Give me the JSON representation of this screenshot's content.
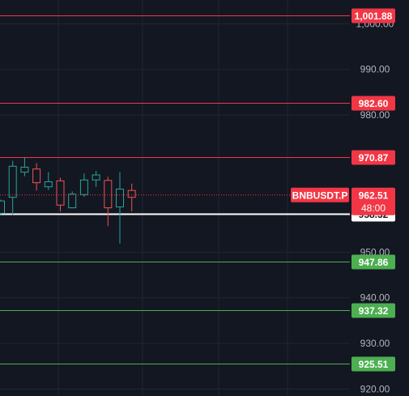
{
  "chart_data": {
    "type": "candlestick",
    "symbol": "BNBUSDT.P",
    "ylim": [
      918.5,
      1005.2
    ],
    "y_ticks": [
      "1,000.00",
      "990.00",
      "980.00",
      "950.00",
      "940.00",
      "930.00",
      "920.00"
    ],
    "y_tick_values": [
      1000,
      990,
      980,
      950,
      940,
      930,
      920
    ],
    "last_price": {
      "value": 962.51,
      "label": "962.51",
      "countdown": "48:00"
    },
    "horizontal_levels": [
      {
        "value": 1001.88,
        "label": "1,001.88",
        "kind": "resistance"
      },
      {
        "value": 982.6,
        "label": "982.60",
        "kind": "resistance"
      },
      {
        "value": 970.87,
        "label": "970.87",
        "kind": "resistance"
      },
      {
        "value": 958.32,
        "label": "958.32",
        "kind": "pivot"
      },
      {
        "value": 947.86,
        "label": "947.86",
        "kind": "support"
      },
      {
        "value": 937.32,
        "label": "937.32",
        "kind": "support"
      },
      {
        "value": 925.51,
        "label": "925.51",
        "kind": "support"
      }
    ],
    "candles": [
      {
        "o": 958.5,
        "h": 961.5,
        "l": 958.0,
        "c": 961.2
      },
      {
        "o": 962.0,
        "h": 970.0,
        "l": 958.2,
        "c": 968.8
      },
      {
        "o": 967.5,
        "h": 970.8,
        "l": 966.6,
        "c": 968.6
      },
      {
        "o": 968.2,
        "h": 969.5,
        "l": 963.5,
        "c": 965.2
      },
      {
        "o": 964.3,
        "h": 967.5,
        "l": 963.6,
        "c": 965.4
      },
      {
        "o": 965.6,
        "h": 966.3,
        "l": 958.9,
        "c": 960.3
      },
      {
        "o": 959.7,
        "h": 963.3,
        "l": 959.6,
        "c": 962.7
      },
      {
        "o": 962.6,
        "h": 967.2,
        "l": 962.1,
        "c": 965.8
      },
      {
        "o": 965.8,
        "h": 967.8,
        "l": 964.3,
        "c": 966.9
      },
      {
        "o": 965.7,
        "h": 966.5,
        "l": 955.7,
        "c": 959.7
      },
      {
        "o": 959.9,
        "h": 967.5,
        "l": 951.9,
        "c": 963.8
      },
      {
        "o": 963.5,
        "h": 965.0,
        "l": 958.9,
        "c": 962.0
      }
    ]
  },
  "colors": {
    "background": "#131722",
    "grid": "#222632",
    "up": "#26a69a",
    "down": "#ef5350",
    "resistance": "#f23645",
    "support": "#4caf50",
    "pivot": "#ffffff",
    "axis_text": "#b2b5be"
  }
}
